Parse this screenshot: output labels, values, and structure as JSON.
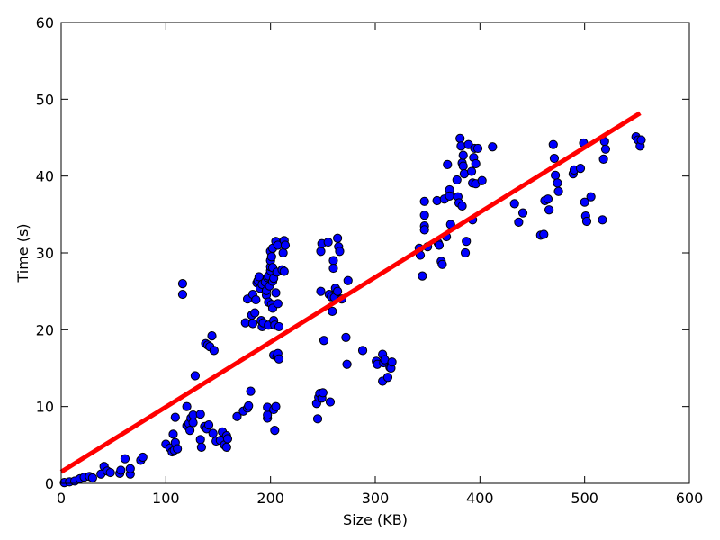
{
  "chart_data": {
    "type": "scatter",
    "title": "",
    "xlabel": "Size (KB)",
    "ylabel": "Time (s)",
    "xlim": [
      0,
      600
    ],
    "ylim": [
      0,
      60
    ],
    "xticks": [
      "0",
      "100",
      "200",
      "300",
      "400",
      "500",
      "600"
    ],
    "yticks": [
      "0",
      "10",
      "20",
      "30",
      "40",
      "50",
      "60"
    ],
    "grid": false,
    "legend": "none",
    "series": [
      {
        "kind": "scatter",
        "color": "#0000ff",
        "points": [
          [
            3,
            0.1
          ],
          [
            8,
            0.2
          ],
          [
            13,
            0.3
          ],
          [
            18,
            0.6
          ],
          [
            22,
            0.8
          ],
          [
            27,
            0.9
          ],
          [
            30,
            0.7
          ],
          [
            38,
            1.2
          ],
          [
            41,
            2.2
          ],
          [
            44,
            1.6
          ],
          [
            47,
            1.4
          ],
          [
            56,
            1.3
          ],
          [
            57,
            1.7
          ],
          [
            61,
            3.2
          ],
          [
            66,
            1.2
          ],
          [
            66,
            1.9
          ],
          [
            76,
            3.0
          ],
          [
            78,
            3.4
          ],
          [
            100,
            5.1
          ],
          [
            104,
            4.6
          ],
          [
            106,
            4.1
          ],
          [
            107,
            6.4
          ],
          [
            108,
            4.3
          ],
          [
            109,
            5.3
          ],
          [
            109,
            8.6
          ],
          [
            111,
            4.5
          ],
          [
            116,
            26.0
          ],
          [
            116,
            24.6
          ],
          [
            120,
            10.0
          ],
          [
            120,
            7.5
          ],
          [
            122,
            7.8
          ],
          [
            123,
            6.9
          ],
          [
            124,
            8.5
          ],
          [
            126,
            7.9
          ],
          [
            126,
            8.9
          ],
          [
            128,
            14.0
          ],
          [
            133,
            9.0
          ],
          [
            133,
            5.7
          ],
          [
            134,
            4.7
          ],
          [
            137,
            7.4
          ],
          [
            138,
            18.2
          ],
          [
            139,
            7.1
          ],
          [
            140,
            18.0
          ],
          [
            141,
            7.6
          ],
          [
            142,
            17.8
          ],
          [
            144,
            19.2
          ],
          [
            145,
            6.5
          ],
          [
            146,
            17.3
          ],
          [
            148,
            5.5
          ],
          [
            152,
            5.6
          ],
          [
            154,
            6.7
          ],
          [
            156,
            5.0
          ],
          [
            158,
            4.7
          ],
          [
            158,
            6.2
          ],
          [
            159,
            5.8
          ],
          [
            168,
            8.7
          ],
          [
            174,
            9.4
          ],
          [
            176,
            20.9
          ],
          [
            178,
            9.8
          ],
          [
            178,
            24.0
          ],
          [
            179,
            10.1
          ],
          [
            181,
            12.0
          ],
          [
            182,
            21.9
          ],
          [
            183,
            20.8
          ],
          [
            183,
            24.6
          ],
          [
            185,
            22.2
          ],
          [
            186,
            23.9
          ],
          [
            187,
            26.1
          ],
          [
            188,
            26.4
          ],
          [
            189,
            26.9
          ],
          [
            190,
            25.4
          ],
          [
            191,
            21.2
          ],
          [
            192,
            20.4
          ],
          [
            192,
            25.9
          ],
          [
            193,
            20.9
          ],
          [
            195,
            26.2
          ],
          [
            196,
            24.5
          ],
          [
            196,
            25.1
          ],
          [
            197,
            8.5
          ],
          [
            197,
            8.9
          ],
          [
            197,
            9.9
          ],
          [
            197,
            26.8
          ],
          [
            198,
            20.6
          ],
          [
            198,
            23.6
          ],
          [
            198,
            27.0
          ],
          [
            199,
            25.7
          ],
          [
            200,
            27.7
          ],
          [
            200,
            28.2
          ],
          [
            200,
            29.0
          ],
          [
            200,
            30.2
          ],
          [
            201,
            29.5
          ],
          [
            201,
            23.3
          ],
          [
            202,
            22.8
          ],
          [
            202,
            26.3
          ],
          [
            202,
            28.1
          ],
          [
            202,
            30.6
          ],
          [
            203,
            9.6
          ],
          [
            203,
            16.7
          ],
          [
            203,
            21.2
          ],
          [
            203,
            26.7
          ],
          [
            204,
            6.9
          ],
          [
            204,
            20.6
          ],
          [
            205,
            10.0
          ],
          [
            205,
            24.8
          ],
          [
            205,
            31.5
          ],
          [
            206,
            16.5
          ],
          [
            206,
            27.5
          ],
          [
            207,
            16.9
          ],
          [
            207,
            23.4
          ],
          [
            207,
            31.0
          ],
          [
            208,
            16.2
          ],
          [
            208,
            20.4
          ],
          [
            211,
            27.8
          ],
          [
            212,
            30.0
          ],
          [
            213,
            31.6
          ],
          [
            213,
            27.6
          ],
          [
            214,
            31.0
          ],
          [
            244,
            10.4
          ],
          [
            245,
            8.4
          ],
          [
            246,
            11.2
          ],
          [
            247,
            11.7
          ],
          [
            248,
            30.2
          ],
          [
            248,
            25.0
          ],
          [
            249,
            31.2
          ],
          [
            249,
            11.1
          ],
          [
            250,
            11.8
          ],
          [
            251,
            18.6
          ],
          [
            255,
            31.4
          ],
          [
            256,
            24.6
          ],
          [
            257,
            10.6
          ],
          [
            258,
            24.3
          ],
          [
            259,
            22.4
          ],
          [
            260,
            29.0
          ],
          [
            260,
            28.0
          ],
          [
            261,
            24.2
          ],
          [
            262,
            25.4
          ],
          [
            264,
            31.9
          ],
          [
            264,
            25.0
          ],
          [
            265,
            30.8
          ],
          [
            266,
            30.2
          ],
          [
            268,
            24.0
          ],
          [
            272,
            19.0
          ],
          [
            273,
            15.5
          ],
          [
            274,
            26.4
          ],
          [
            288,
            17.3
          ],
          [
            301,
            15.9
          ],
          [
            302,
            15.5
          ],
          [
            307,
            16.8
          ],
          [
            307,
            13.3
          ],
          [
            308,
            15.7
          ],
          [
            309,
            16.1
          ],
          [
            312,
            13.8
          ],
          [
            314,
            15.1
          ],
          [
            315,
            15.0
          ],
          [
            316,
            15.8
          ],
          [
            342,
            30.6
          ],
          [
            343,
            29.7
          ],
          [
            345,
            27.0
          ],
          [
            347,
            36.7
          ],
          [
            347,
            33.5
          ],
          [
            347,
            33.0
          ],
          [
            347,
            34.9
          ],
          [
            350,
            30.8
          ],
          [
            359,
            36.8
          ],
          [
            360,
            31.3
          ],
          [
            361,
            31.0
          ],
          [
            363,
            28.9
          ],
          [
            364,
            28.5
          ],
          [
            366,
            37.0
          ],
          [
            368,
            32.1
          ],
          [
            369,
            41.5
          ],
          [
            371,
            38.2
          ],
          [
            371,
            37.4
          ],
          [
            372,
            33.7
          ],
          [
            378,
            39.5
          ],
          [
            379,
            37.3
          ],
          [
            380,
            36.5
          ],
          [
            381,
            44.9
          ],
          [
            382,
            43.9
          ],
          [
            383,
            41.7
          ],
          [
            383,
            36.1
          ],
          [
            384,
            42.7
          ],
          [
            384,
            41.3
          ],
          [
            385,
            40.3
          ],
          [
            386,
            30.0
          ],
          [
            387,
            31.5
          ],
          [
            389,
            44.1
          ],
          [
            392,
            40.6
          ],
          [
            393,
            34.3
          ],
          [
            393,
            39.1
          ],
          [
            394,
            42.4
          ],
          [
            395,
            43.6
          ],
          [
            396,
            41.6
          ],
          [
            396,
            39.0
          ],
          [
            398,
            43.6
          ],
          [
            402,
            39.4
          ],
          [
            412,
            43.8
          ],
          [
            433,
            36.4
          ],
          [
            437,
            34.0
          ],
          [
            441,
            35.2
          ],
          [
            458,
            32.3
          ],
          [
            461,
            32.4
          ],
          [
            462,
            36.8
          ],
          [
            465,
            37.0
          ],
          [
            466,
            35.6
          ],
          [
            470,
            44.1
          ],
          [
            471,
            42.3
          ],
          [
            472,
            40.1
          ],
          [
            474,
            39.1
          ],
          [
            475,
            38.0
          ],
          [
            489,
            40.3
          ],
          [
            490,
            40.8
          ],
          [
            496,
            41.0
          ],
          [
            499,
            44.3
          ],
          [
            500,
            36.6
          ],
          [
            501,
            34.8
          ],
          [
            502,
            34.1
          ],
          [
            506,
            37.3
          ],
          [
            517,
            34.3
          ],
          [
            518,
            42.2
          ],
          [
            519,
            44.5
          ],
          [
            520,
            43.5
          ],
          [
            549,
            45.1
          ],
          [
            551,
            44.7
          ],
          [
            553,
            43.9
          ],
          [
            554,
            44.7
          ]
        ]
      },
      {
        "kind": "line",
        "color": "#ff0000",
        "x": [
          0,
          553
        ],
        "y": [
          1.5,
          48.2
        ]
      }
    ]
  }
}
